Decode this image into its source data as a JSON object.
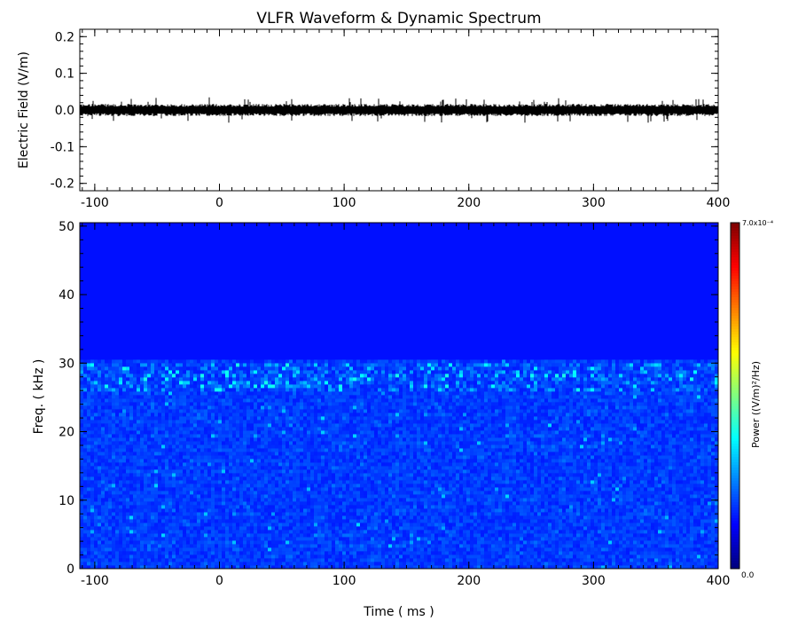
{
  "chart_data": [
    {
      "type": "line",
      "title": "VLFR Waveform & Dynamic Spectrum",
      "xlabel": "",
      "ylabel": "Electric Field  (V/m)",
      "xlim": [
        -112,
        400
      ],
      "ylim": [
        -0.22,
        0.22
      ],
      "x_ticks": [
        "-100",
        "0",
        "100",
        "200",
        "300",
        "400"
      ],
      "y_ticks": [
        "-0.2",
        "-0.1",
        "0.0",
        "0.1",
        "0.2"
      ],
      "series": [
        {
          "color": "#000000",
          "baseline": 0.0,
          "noise_amplitude": 0.015,
          "peak_amplitude": 0.035,
          "x_range": [
            -112,
            400
          ]
        }
      ]
    },
    {
      "type": "heatmap",
      "xlabel": "Time ( ms )",
      "ylabel": "Freq. ( kHz )",
      "xlim": [
        -112,
        400
      ],
      "ylim": [
        0,
        50.5
      ],
      "x_ticks": [
        "-100",
        "0",
        "100",
        "200",
        "300",
        "400"
      ],
      "y_ticks": [
        "0",
        "10",
        "20",
        "30",
        "40",
        "50"
      ],
      "colormap": "jet",
      "signal_band_khz": [
        0,
        30.5
      ],
      "enhanced_band_khz": [
        26,
        30
      ],
      "colorbar": {
        "label": "Power  ((V/m)²/Hz)",
        "min_label": "0.0",
        "max_label": "7.0x10⁻⁴",
        "range": [
          0.0,
          0.0007
        ]
      }
    }
  ]
}
